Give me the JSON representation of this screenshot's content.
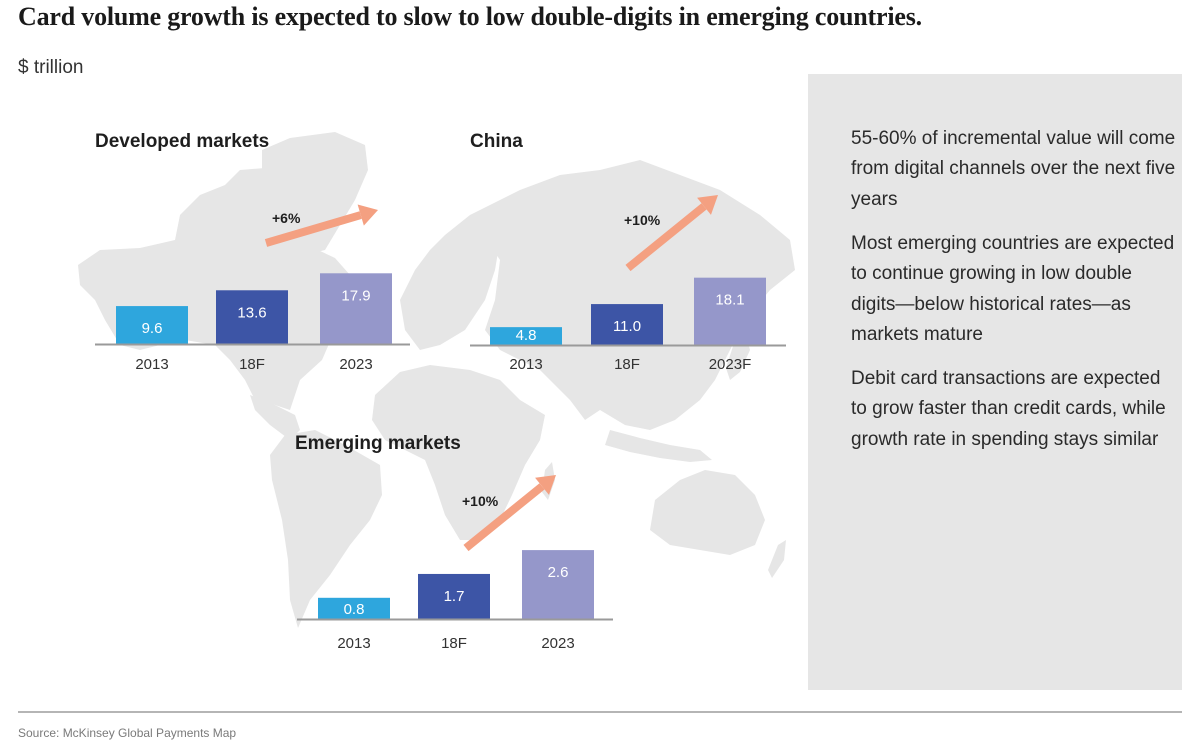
{
  "header": {
    "title": "Card volume growth is expected to slow to low double-digits in emerging countries.",
    "unit": "$ trillion"
  },
  "colors": {
    "bar_2013": "#2ea6dd",
    "bar_18F": "#3d55a6",
    "bar_2023": "#9597ca",
    "arrow": "#f4a081",
    "axis": "#999999",
    "map": "#e6e6e6",
    "panel": "#e6e6e6"
  },
  "chart_data": [
    {
      "type": "bar",
      "title": "Developed markets",
      "categories": [
        "2013",
        "18F",
        "2023"
      ],
      "values": [
        9.6,
        13.6,
        17.9
      ],
      "value_labels": [
        "9.6",
        "13.6",
        "17.9"
      ],
      "growth_label": "+6%",
      "xlabel": "",
      "ylabel": "$ trillion"
    },
    {
      "type": "bar",
      "title": "China",
      "categories": [
        "2013",
        "18F",
        "2023F"
      ],
      "values": [
        4.8,
        11.0,
        18.1
      ],
      "value_labels": [
        "4.8",
        "11.0",
        "18.1"
      ],
      "growth_label": "+10%",
      "xlabel": "",
      "ylabel": "$ trillion"
    },
    {
      "type": "bar",
      "title": "Emerging markets",
      "categories": [
        "2013",
        "18F",
        "2023"
      ],
      "values": [
        0.8,
        1.7,
        2.6
      ],
      "value_labels": [
        "0.8",
        "1.7",
        "2.6"
      ],
      "growth_label": "+10%",
      "xlabel": "",
      "ylabel": "$ trillion"
    }
  ],
  "panel": {
    "paragraphs": [
      "55-60% of incremental value will come from digital channels over the next five years",
      "Most emerging countries are expected to continue growing in low double digits—below historical rates—as markets mature",
      "Debit card transactions are expected to grow faster than credit cards, while growth rate in spending stays similar"
    ]
  },
  "footer": {
    "source": "Source: McKinsey Global Payments Map"
  }
}
